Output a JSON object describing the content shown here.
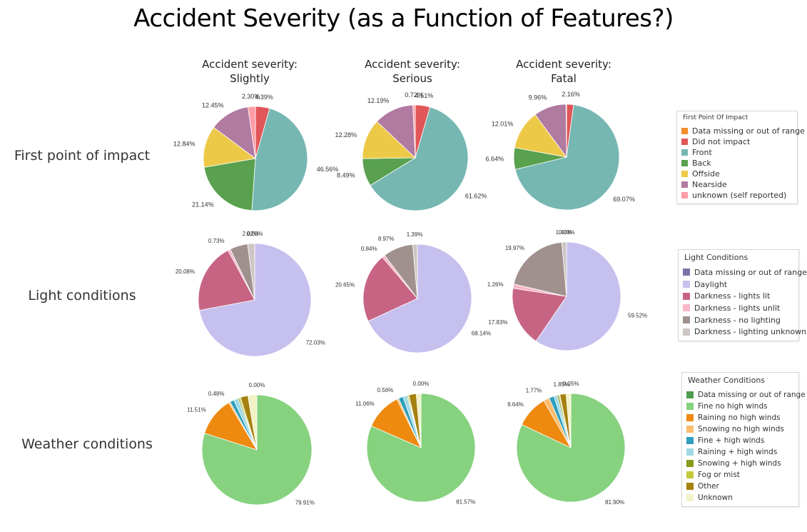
{
  "title": "Accident Severity (as a Function of Features?)",
  "column_headers": [
    {
      "line1": "Accident severity:",
      "line2": "Slightly"
    },
    {
      "line1": "Accident severity:",
      "line2": "Serious"
    },
    {
      "line1": "Accident severity:",
      "line2": "Fatal"
    }
  ],
  "row_labels": [
    "First point of impact",
    "Light conditions",
    "Weather conditions"
  ],
  "legends": {
    "impact": {
      "title": "First Point Of Impact",
      "items": [
        {
          "label": "Data missing or out of range",
          "color": "#f28e2b"
        },
        {
          "label": "Did not impact",
          "color": "#e15759"
        },
        {
          "label": "Front",
          "color": "#76b7b2"
        },
        {
          "label": "Back",
          "color": "#59a14f"
        },
        {
          "label": "Offside",
          "color": "#edc948"
        },
        {
          "label": "Nearside",
          "color": "#b07aa1"
        },
        {
          "label": "unknown (self reported)",
          "color": "#ff9da7"
        }
      ]
    },
    "light": {
      "title": "Light Conditions",
      "items": [
        {
          "label": "Data missing or out of range",
          "color": "#7b73a8"
        },
        {
          "label": "Daylight",
          "color": "#c6c0ee"
        },
        {
          "label": "Darkness - lights lit",
          "color": "#c76484"
        },
        {
          "label": "Darkness - lights unlit",
          "color": "#f7b7c9"
        },
        {
          "label": "Darkness - no lighting",
          "color": "#a0918f"
        },
        {
          "label": "Darkness - lighting unknown",
          "color": "#cdc6c5"
        }
      ]
    },
    "weather": {
      "title": "Weather Conditions",
      "items": [
        {
          "label": "Data missing or out of range",
          "color": "#4f9e4f"
        },
        {
          "label": "Fine no high winds",
          "color": "#86d27f"
        },
        {
          "label": "Raining no high winds",
          "color": "#ee8a10"
        },
        {
          "label": "Snowing no high winds",
          "color": "#fbbd6e"
        },
        {
          "label": "Fine + high winds",
          "color": "#2e9fbd"
        },
        {
          "label": "Raining + high winds",
          "color": "#9fd9e6"
        },
        {
          "label": "Snowing + high winds",
          "color": "#8a9a1b"
        },
        {
          "label": "Fog or mist",
          "color": "#c4c93b"
        },
        {
          "label": "Other",
          "color": "#a5810f"
        },
        {
          "label": "Unknown",
          "color": "#f1f2c6"
        }
      ]
    }
  },
  "chart_data": [
    {
      "type": "pie",
      "row": "First point of impact",
      "column": "Slightly",
      "legend": "impact",
      "slices": [
        {
          "category": "Did not impact",
          "value": 4.39,
          "label": "4.39%"
        },
        {
          "category": "Front",
          "value": 46.56,
          "label": "46.56%"
        },
        {
          "category": "Back",
          "value": 21.14,
          "label": "21.14%"
        },
        {
          "category": "Offside",
          "value": 12.84,
          "label": "12.84%"
        },
        {
          "category": "Nearside",
          "value": 12.45,
          "label": "12.45%"
        },
        {
          "category": "unknown (self reported)",
          "value": 2.3,
          "label": "2.30%"
        }
      ]
    },
    {
      "type": "pie",
      "row": "First point of impact",
      "column": "Serious",
      "legend": "impact",
      "slices": [
        {
          "category": "Did not impact",
          "value": 4.51,
          "label": "4.51%"
        },
        {
          "category": "Front",
          "value": 61.62,
          "label": "61.62%"
        },
        {
          "category": "Back",
          "value": 8.49,
          "label": "8.49%"
        },
        {
          "category": "Offside",
          "value": 12.28,
          "label": "12.28%"
        },
        {
          "category": "Nearside",
          "value": 12.19,
          "label": "12.19%"
        },
        {
          "category": "unknown (self reported)",
          "value": 0.72,
          "label": "0.72%"
        }
      ]
    },
    {
      "type": "pie",
      "row": "First point of impact",
      "column": "Fatal",
      "legend": "impact",
      "slices": [
        {
          "category": "Did not impact",
          "value": 2.16,
          "label": "2.16%"
        },
        {
          "category": "Front",
          "value": 69.07,
          "label": "69.07%"
        },
        {
          "category": "Back",
          "value": 6.64,
          "label": "6.64%"
        },
        {
          "category": "Offside",
          "value": 12.01,
          "label": "12.01%"
        },
        {
          "category": "Nearside",
          "value": 9.96,
          "label": "9.96%"
        },
        {
          "category": "unknown (self reported)",
          "value": 0.16,
          "label": ""
        }
      ]
    },
    {
      "type": "pie",
      "row": "Light conditions",
      "column": "Slightly",
      "legend": "light",
      "slices": [
        {
          "category": "Data missing or out of range",
          "value": 0.0,
          "label": "0.00%"
        },
        {
          "category": "Daylight",
          "value": 72.03,
          "label": "72.03%"
        },
        {
          "category": "Darkness - lights lit",
          "value": 20.08,
          "label": "20.08%"
        },
        {
          "category": "Darkness - lights unlit",
          "value": 0.73,
          "label": "0.73%"
        },
        {
          "category": "Darkness - no lighting",
          "value": 5.14,
          "label": ""
        },
        {
          "category": "Darkness - lighting unknown",
          "value": 2.02,
          "label": "2.02%"
        }
      ]
    },
    {
      "type": "pie",
      "row": "Light conditions",
      "column": "Serious",
      "legend": "light",
      "slices": [
        {
          "category": "Data missing or out of range",
          "value": 0.0,
          "label": ""
        },
        {
          "category": "Daylight",
          "value": 68.14,
          "label": "68.14%"
        },
        {
          "category": "Darkness - lights lit",
          "value": 20.65,
          "label": "20.65%"
        },
        {
          "category": "Darkness - lights unlit",
          "value": 0.84,
          "label": "0.84%"
        },
        {
          "category": "Darkness - no lighting",
          "value": 8.97,
          "label": "8.97%"
        },
        {
          "category": "Darkness - lighting unknown",
          "value": 1.39,
          "label": "1.39%"
        }
      ]
    },
    {
      "type": "pie",
      "row": "Light conditions",
      "column": "Fatal",
      "legend": "light",
      "slices": [
        {
          "category": "Data missing or out of range",
          "value": 0.03,
          "label": "0.03%"
        },
        {
          "category": "Daylight",
          "value": 59.52,
          "label": "59.52%"
        },
        {
          "category": "Darkness - lights lit",
          "value": 17.83,
          "label": "17.83%"
        },
        {
          "category": "Darkness - lights unlit",
          "value": 1.26,
          "label": "1.26%"
        },
        {
          "category": "Darkness - no lighting",
          "value": 19.97,
          "label": "19.97%"
        },
        {
          "category": "Darkness - lighting unknown",
          "value": 1.4,
          "label": "1.40%"
        }
      ]
    },
    {
      "type": "pie",
      "row": "Weather conditions",
      "column": "Slightly",
      "legend": "weather",
      "slices": [
        {
          "category": "Data missing or out of range",
          "value": 0.0,
          "label": "0.00%"
        },
        {
          "category": "Fine no high winds",
          "value": 79.91,
          "label": "79.91%"
        },
        {
          "category": "Raining no high winds",
          "value": 11.51,
          "label": "11.51%"
        },
        {
          "category": "Snowing no high winds",
          "value": 0.48,
          "label": "0.48%"
        },
        {
          "category": "Fine + high winds",
          "value": 1.2,
          "label": ""
        },
        {
          "category": "Raining + high winds",
          "value": 1.3,
          "label": ""
        },
        {
          "category": "Snowing + high winds",
          "value": 0.4,
          "label": ""
        },
        {
          "category": "Fog or mist",
          "value": 0.4,
          "label": ""
        },
        {
          "category": "Other",
          "value": 2.2,
          "label": ""
        },
        {
          "category": "Unknown",
          "value": 2.6,
          "label": ""
        }
      ]
    },
    {
      "type": "pie",
      "row": "Weather conditions",
      "column": "Serious",
      "legend": "weather",
      "slices": [
        {
          "category": "Data missing or out of range",
          "value": 0.0,
          "label": "0.00%"
        },
        {
          "category": "Fine no high winds",
          "value": 81.57,
          "label": "81.57%"
        },
        {
          "category": "Raining no high winds",
          "value": 11.06,
          "label": "11.06%"
        },
        {
          "category": "Snowing no high winds",
          "value": 0.56,
          "label": "0.56%"
        },
        {
          "category": "Fine + high winds",
          "value": 1.4,
          "label": ""
        },
        {
          "category": "Raining + high winds",
          "value": 1.2,
          "label": ""
        },
        {
          "category": "Snowing + high winds",
          "value": 0.3,
          "label": ""
        },
        {
          "category": "Fog or mist",
          "value": 0.3,
          "label": ""
        },
        {
          "category": "Other",
          "value": 2.2,
          "label": ""
        },
        {
          "category": "Unknown",
          "value": 1.4,
          "label": ""
        }
      ]
    },
    {
      "type": "pie",
      "row": "Weather conditions",
      "column": "Fatal",
      "legend": "weather",
      "slices": [
        {
          "category": "Data missing or out of range",
          "value": 0.05,
          "label": "0.05%"
        },
        {
          "category": "Fine no high winds",
          "value": 81.9,
          "label": "81.90%"
        },
        {
          "category": "Raining no high winds",
          "value": 9.64,
          "label": "9.64%"
        },
        {
          "category": "Snowing no high winds",
          "value": 1.77,
          "label": "1.77%"
        },
        {
          "category": "Fine + high winds",
          "value": 1.5,
          "label": ""
        },
        {
          "category": "Raining + high winds",
          "value": 1.0,
          "label": ""
        },
        {
          "category": "Snowing + high winds",
          "value": 0.5,
          "label": ""
        },
        {
          "category": "Fog or mist",
          "value": 0.3,
          "label": ""
        },
        {
          "category": "Other",
          "value": 1.85,
          "label": "1.85%"
        },
        {
          "category": "Unknown",
          "value": 1.4,
          "label": ""
        }
      ]
    }
  ]
}
